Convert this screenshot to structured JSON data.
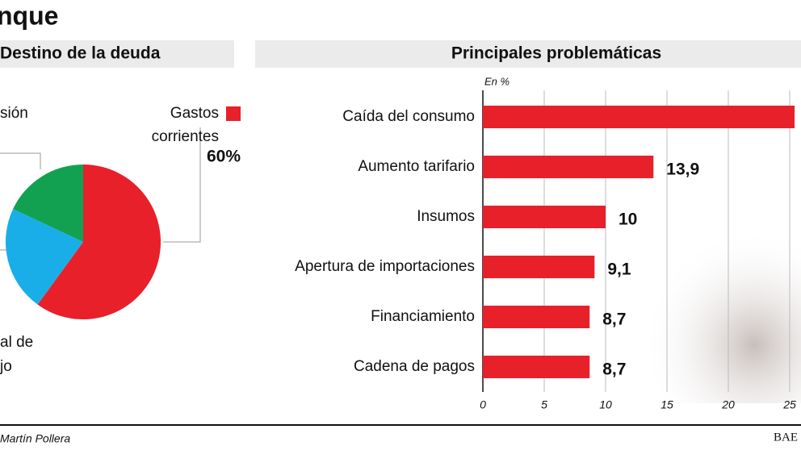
{
  "header": {
    "title": "nque"
  },
  "chart_data": [
    {
      "type": "pie",
      "title": "Destino de la deuda",
      "categories": [
        [
          "Gastos",
          "corrientes"
        ],
        [
          "al de",
          "jo"
        ],
        [
          "sión"
        ]
      ],
      "values": [
        60,
        22,
        18
      ],
      "value_labels": [
        "60%",
        null,
        null
      ],
      "colors": [
        "#e8202a",
        "#1aaee8",
        "#12a150"
      ]
    },
    {
      "type": "bar",
      "orientation": "horizontal",
      "title": "Principales problemáticas",
      "x_label": "En %",
      "categories": [
        "Caída del consumo",
        "Aumento tarifario",
        "Insumos",
        "Apertura de importaciones",
        "Financiamiento",
        "Cadena de pagos"
      ],
      "values": [
        25.4,
        13.9,
        10,
        9.1,
        8.7,
        8.7
      ],
      "value_labels": [
        null,
        "13,9",
        "10",
        "9,1",
        "8,7",
        "8,7"
      ],
      "color": "#e8202a",
      "xlim": [
        0,
        26
      ],
      "xticks": [
        0,
        5,
        10,
        15,
        20,
        25
      ],
      "grid": true
    }
  ],
  "footer": {
    "credit": "Martín Pollera",
    "source": "BAE"
  }
}
